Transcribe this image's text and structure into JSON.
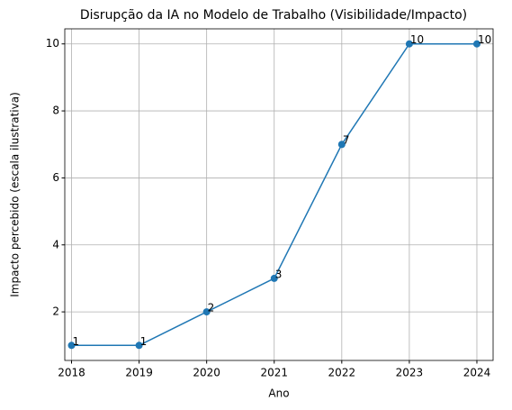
{
  "chart_data": {
    "type": "line",
    "title": "Disrupção da IA no Modelo de Trabalho (Visibilidade/Impacto)",
    "x_label": "Ano",
    "y_label": "Impacto percebido (escala ilustrativa)",
    "x": [
      2018,
      2019,
      2020,
      2021,
      2022,
      2023,
      2024
    ],
    "values": [
      1,
      1,
      2,
      3,
      7,
      10,
      10
    ],
    "color": "#1f77b4",
    "xlim": [
      2017.9,
      2024.24
    ],
    "xticks": [
      2018,
      2019,
      2020,
      2021,
      2022,
      2023,
      2024
    ],
    "ylim": [
      0.55,
      10.45
    ],
    "yticks": [
      2,
      4,
      6,
      8,
      10
    ],
    "grid": true,
    "markers": true,
    "data_labels": true
  }
}
